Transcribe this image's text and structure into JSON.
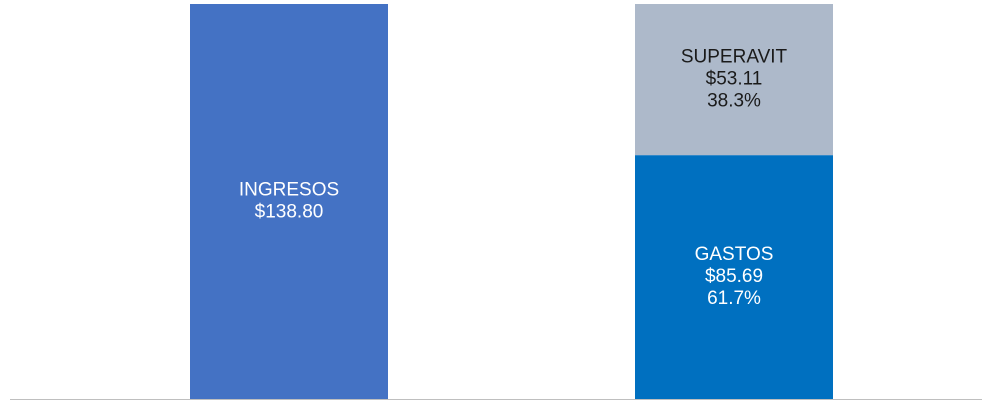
{
  "chart_data": {
    "type": "bar",
    "stacked": true,
    "categories": [
      "",
      ""
    ],
    "series": [
      {
        "values": [
          138.8,
          85.69
        ],
        "labels": [
          [
            "INGRESOS",
            "$138.80"
          ],
          [
            "GASTOS",
            "$85.69",
            "61.7%"
          ]
        ],
        "colors": [
          "#4472C4",
          "#0070C0"
        ],
        "label_color": "#ffffff"
      },
      {
        "values": [
          0,
          53.11
        ],
        "labels": [
          [],
          [
            "SUPERAVIT",
            "$53.11",
            "38.3%"
          ]
        ],
        "colors": [
          "#ADB9CA",
          "#ADB9CA"
        ],
        "label_color": "#1a1a1a"
      }
    ],
    "title": "",
    "xlabel": "",
    "ylabel": "",
    "ylim": [
      0,
      138.8
    ],
    "grid": false,
    "axis_color": "#BFBFBF"
  }
}
